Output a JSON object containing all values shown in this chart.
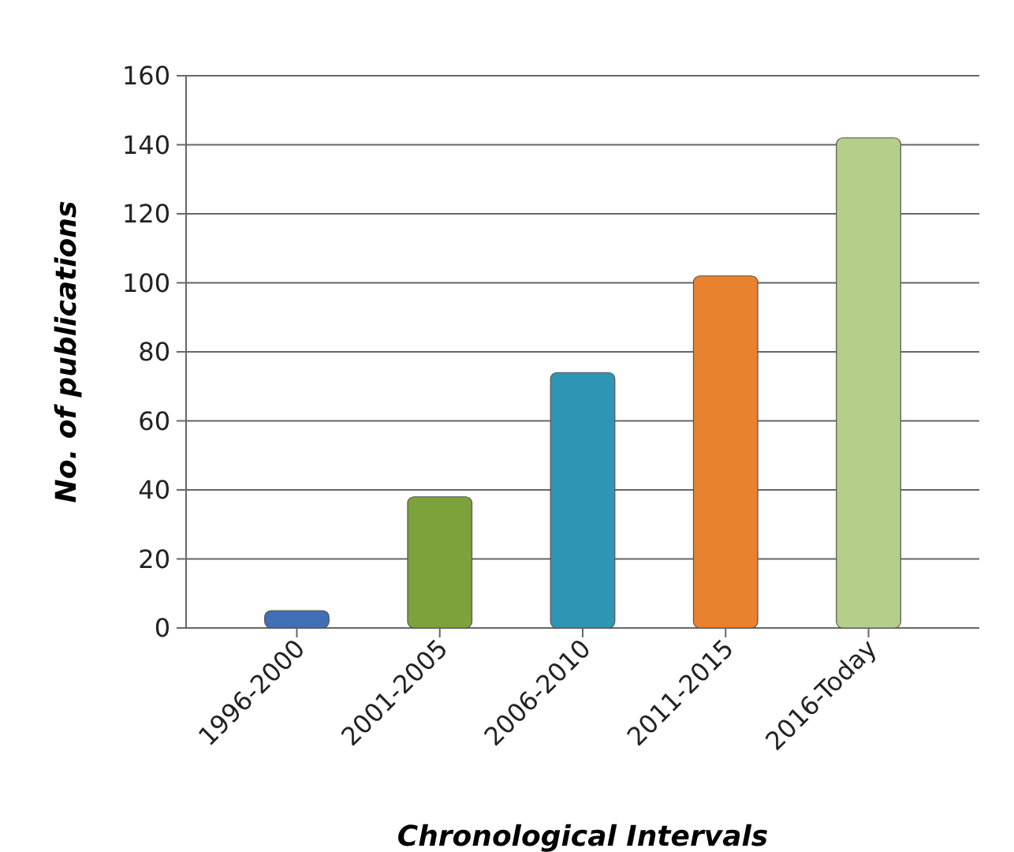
{
  "chart_data": {
    "type": "bar",
    "xlabel": "Chronological  Intervals",
    "ylabel": "No. of publications",
    "categories": [
      "1996-2000",
      "2001-2005",
      "2006-2010",
      "2011-2015",
      "2016-Today"
    ],
    "values": [
      5,
      38,
      74,
      102,
      142
    ],
    "colors": [
      "#3f6fb5",
      "#7ea23b",
      "#2e95b5",
      "#e8822e",
      "#b5cf8a"
    ],
    "ylim": [
      0,
      160
    ],
    "yticks": [
      0,
      20,
      40,
      60,
      80,
      100,
      120,
      140,
      160
    ],
    "grid": "y"
  }
}
